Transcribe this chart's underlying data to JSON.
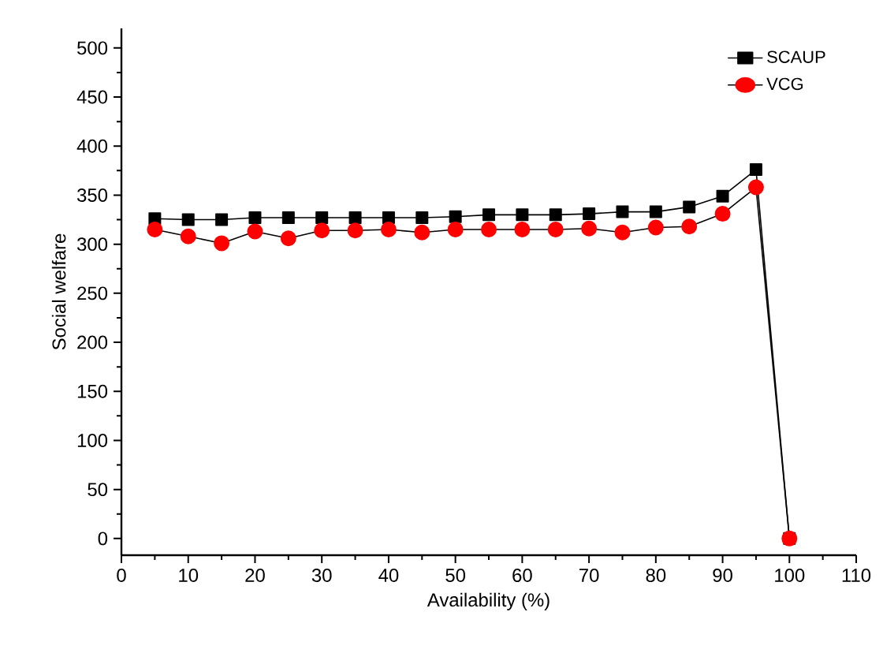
{
  "chart_data": {
    "type": "line",
    "xlabel": "Availability (%)",
    "ylabel": "Social welfare",
    "x": [
      5,
      10,
      15,
      20,
      25,
      30,
      35,
      40,
      45,
      50,
      55,
      60,
      65,
      70,
      75,
      80,
      85,
      90,
      95,
      100
    ],
    "series": [
      {
        "name": "SCAUP",
        "color": "#000000",
        "marker": "square",
        "values": [
          326,
          325,
          325,
          327,
          327,
          327,
          327,
          327,
          327,
          328,
          330,
          330,
          330,
          331,
          333,
          333,
          338,
          349,
          376,
          0
        ]
      },
      {
        "name": "VCG",
        "color": "#ff0000",
        "marker": "circle",
        "values": [
          315,
          308,
          301,
          313,
          306,
          314,
          314,
          315,
          312,
          315,
          315,
          315,
          315,
          316,
          312,
          317,
          318,
          331,
          358,
          0
        ]
      }
    ],
    "xlim": [
      0,
      110
    ],
    "xticks": [
      0,
      10,
      20,
      30,
      40,
      50,
      60,
      70,
      80,
      90,
      100,
      110
    ],
    "ylim": [
      -17,
      520
    ],
    "yticks": [
      0,
      50,
      100,
      150,
      200,
      250,
      300,
      350,
      400,
      450,
      500
    ],
    "grid": false,
    "legend": "top right",
    "line_style": "solid"
  }
}
